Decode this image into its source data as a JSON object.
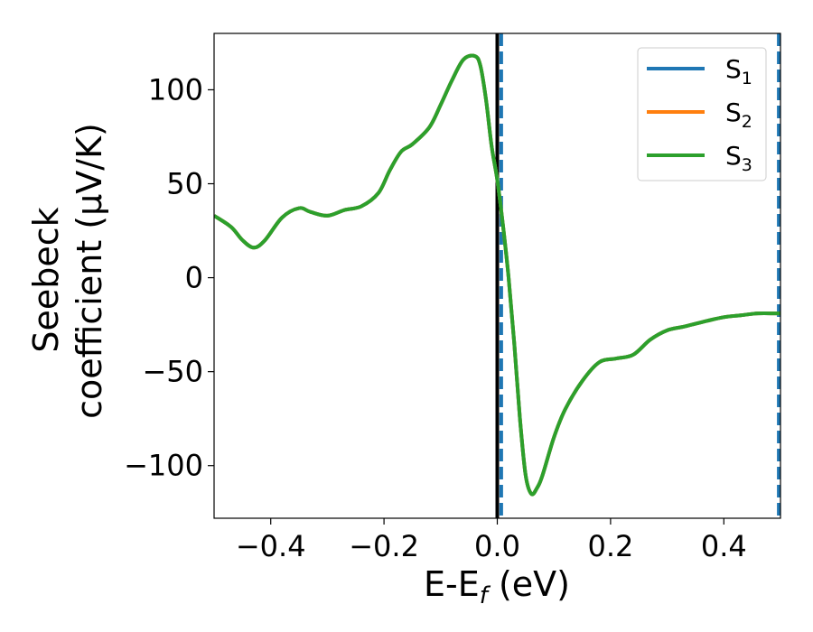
{
  "chart_data": {
    "type": "line",
    "xlabel_main": "E-E",
    "xlabel_sub": "f",
    "xlabel_unit": " (eV)",
    "ylabel_line1": "Seebeck",
    "ylabel_line2": "coefficient  (μV/K)",
    "xlim": [
      -0.5,
      0.5
    ],
    "ylim": [
      -128,
      130
    ],
    "xticks": [
      -0.4,
      -0.2,
      0.0,
      0.2,
      0.4
    ],
    "xtick_labels": [
      "−0.4",
      "−0.2",
      "0.0",
      "0.2",
      "0.4"
    ],
    "yticks": [
      -100,
      -50,
      0,
      50,
      100
    ],
    "ytick_labels": [
      "−100",
      "−50",
      "0",
      "50",
      "100"
    ],
    "grid": false,
    "legend_position": "top-right",
    "vlines": [
      {
        "x": 0.0,
        "style": "solid",
        "color": "#000000"
      },
      {
        "x": 0.007,
        "style": "dashed",
        "color": "#1f77b4"
      },
      {
        "x": 0.497,
        "style": "dashed",
        "color": "#1f77b4"
      }
    ],
    "x": [
      -0.5,
      -0.47,
      -0.45,
      -0.43,
      -0.41,
      -0.38,
      -0.35,
      -0.33,
      -0.3,
      -0.27,
      -0.24,
      -0.21,
      -0.19,
      -0.17,
      -0.15,
      -0.12,
      -0.1,
      -0.08,
      -0.06,
      -0.04,
      -0.03,
      -0.02,
      -0.01,
      0.0,
      0.01,
      0.02,
      0.03,
      0.04,
      0.05,
      0.06,
      0.07,
      0.08,
      0.1,
      0.12,
      0.15,
      0.18,
      0.21,
      0.24,
      0.27,
      0.3,
      0.33,
      0.37,
      0.4,
      0.43,
      0.46,
      0.49,
      0.5
    ],
    "series": [
      {
        "name_main": "S",
        "name_sub": "1",
        "color": "#1f77b4",
        "values": [
          33,
          27,
          20,
          16,
          20,
          32,
          37,
          35,
          33,
          36,
          38,
          45,
          57,
          67,
          71,
          80,
          92,
          105,
          116,
          118,
          113,
          95,
          70,
          52,
          28,
          0,
          -35,
          -75,
          -105,
          -115,
          -112,
          -105,
          -85,
          -70,
          -55,
          -45,
          -43,
          -41,
          -33,
          -28,
          -26,
          -23,
          -21,
          -20,
          -19,
          -19,
          -19
        ]
      },
      {
        "name_main": "S",
        "name_sub": "2",
        "color": "#ff7f0e",
        "values": [
          33,
          27,
          20,
          16,
          20,
          32,
          37,
          35,
          33,
          36,
          38,
          45,
          57,
          67,
          71,
          80,
          92,
          105,
          116,
          118,
          113,
          95,
          70,
          52,
          28,
          0,
          -35,
          -75,
          -105,
          -115,
          -112,
          -105,
          -85,
          -70,
          -55,
          -45,
          -43,
          -41,
          -33,
          -28,
          -26,
          -23,
          -21,
          -20,
          -19,
          -19,
          -19
        ]
      },
      {
        "name_main": "S",
        "name_sub": "3",
        "color": "#2ca02c",
        "values": [
          33,
          27,
          20,
          16,
          20,
          32,
          37,
          35,
          33,
          36,
          38,
          45,
          57,
          67,
          71,
          80,
          92,
          105,
          116,
          118,
          113,
          95,
          70,
          52,
          28,
          0,
          -35,
          -75,
          -105,
          -115,
          -112,
          -105,
          -85,
          -70,
          -55,
          -45,
          -43,
          -41,
          -33,
          -28,
          -26,
          -23,
          -21,
          -20,
          -19,
          -19,
          -19
        ]
      }
    ]
  }
}
